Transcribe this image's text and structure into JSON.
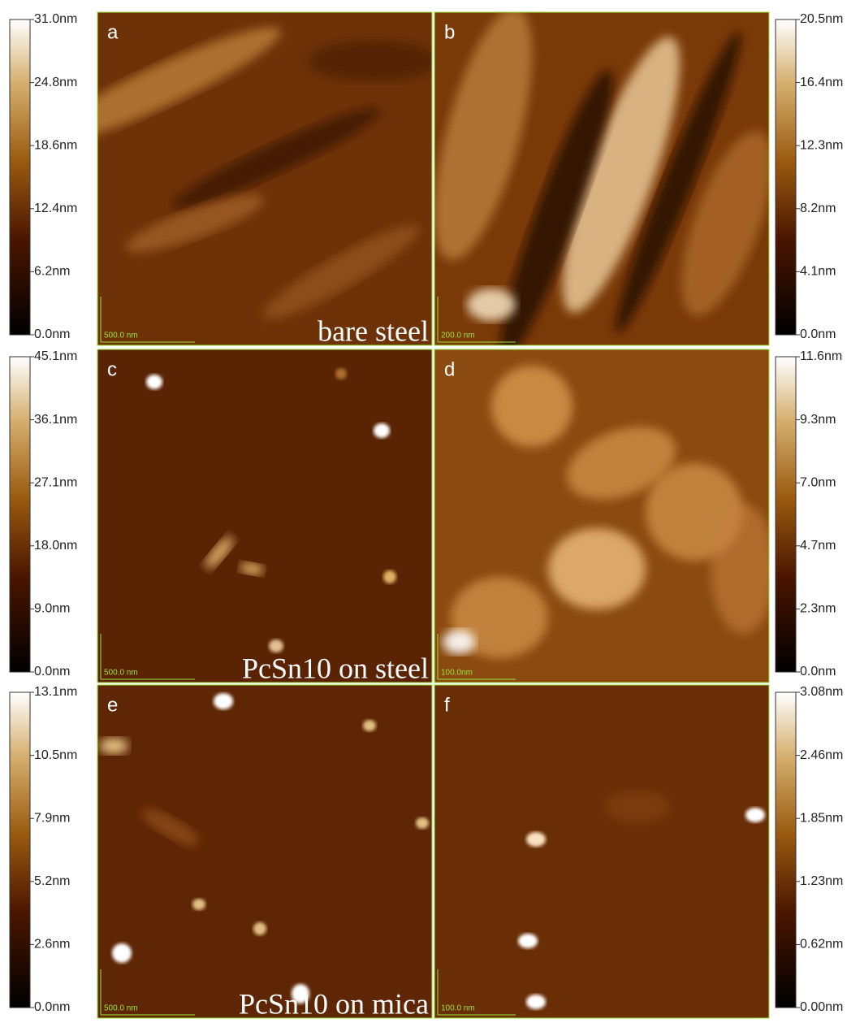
{
  "panels": [
    {
      "label": "a",
      "scale_bar": "500.0 nm",
      "caption": "bare steel"
    },
    {
      "label": "b",
      "scale_bar": "200.0 nm"
    },
    {
      "label": "c",
      "scale_bar": "500.0 nm",
      "caption": "PcSn10 on steel"
    },
    {
      "label": "d",
      "scale_bar": "100.0nm"
    },
    {
      "label": "e",
      "scale_bar": "500.0 nm",
      "caption": "PcSn10 on mica"
    },
    {
      "label": "f",
      "scale_bar": "100.0 nm"
    }
  ],
  "colorbars": [
    {
      "ticks": [
        "31.0nm",
        "24.8nm",
        "18.6nm",
        "12.4nm",
        "6.2nm",
        "0.0nm"
      ]
    },
    {
      "ticks": [
        "20.5nm",
        "16.4nm",
        "12.3nm",
        "8.2nm",
        "4.1nm",
        "0.0nm"
      ]
    },
    {
      "ticks": [
        "45.1nm",
        "36.1nm",
        "27.1nm",
        "18.0nm",
        "9.0nm",
        "0.0nm"
      ]
    },
    {
      "ticks": [
        "11.6nm",
        "9.3nm",
        "7.0nm",
        "4.7nm",
        "2.3nm",
        "0.0nm"
      ]
    },
    {
      "ticks": [
        "13.1nm",
        "10.5nm",
        "7.9nm",
        "5.2nm",
        "2.6nm",
        "0.0nm"
      ]
    },
    {
      "ticks": [
        "3.08nm",
        "2.46nm",
        "1.85nm",
        "1.23nm",
        "0.62nm",
        "0.00nm"
      ]
    }
  ]
}
